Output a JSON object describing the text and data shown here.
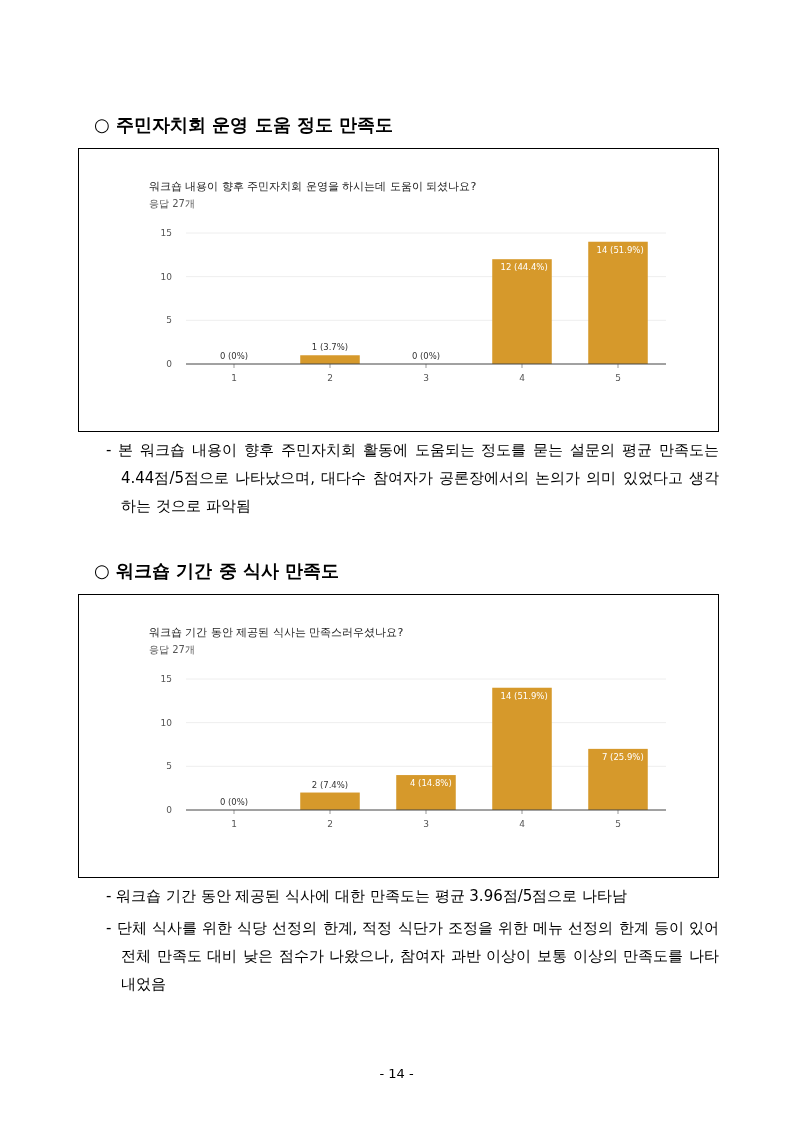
{
  "chart_data": [
    {
      "type": "bar",
      "title": "워크숍 내용이 향후 주민자치회 운영을 하시는데 도움이 되셨나요?",
      "subtitle": "응답 27개",
      "categories": [
        "1",
        "2",
        "3",
        "4",
        "5"
      ],
      "values": [
        0,
        1,
        0,
        12,
        14
      ],
      "color": "#d6992b",
      "value_labels": [
        "0 (0%)",
        "1 (3.7%)",
        "0 (0%)",
        "12 (44.4%)",
        "14 (51.9%)"
      ],
      "ylim": [
        0,
        15
      ],
      "yticks": [
        0,
        5,
        10,
        15
      ],
      "grid": "y",
      "annotations": [
        "○ 주민자치회 운영 도움 정도 만족도",
        "- 본 워크숍 내용이 향후 주민자치회 활동에 도움되는 정도를 묻는 설문의 평균 만족도는 4.44점/5점으로 나타났으며, 대다수 참여자가 공론장에서의 논의가 의미 있었다고 생각하는 것으로 파악됨"
      ]
    },
    {
      "type": "bar",
      "title": "워크숍 기간 동안 제공된 식사는 만족스러우셨나요?",
      "subtitle": "응답 27개",
      "categories": [
        "1",
        "2",
        "3",
        "4",
        "5"
      ],
      "values": [
        0,
        2,
        4,
        14,
        7
      ],
      "color": "#d6992b",
      "value_labels": [
        "0 (0%)",
        "2 (7.4%)",
        "4 (14.8%)",
        "14 (51.9%)",
        "7 (25.9%)"
      ],
      "ylim": [
        0,
        15
      ],
      "yticks": [
        0,
        5,
        10,
        15
      ],
      "grid": "y",
      "annotations": [
        "○ 워크숍 기간 중 식사 만족도",
        "- 워크숍 기간 동안 제공된 식사에 대한 만족도는 평균 3.96점/5점으로 나타남",
        "- 단체 식사를 위한 식당 선정의 한계, 적정 식단가 조정을 위한 메뉴 선정의 한계 등이 있어 전체 만족도 대비 낮은 점수가 나왔으나, 참여자 과반 이상이 보통 이상의 만족도를 나타내었음",
        "- 14 -"
      ]
    }
  ]
}
